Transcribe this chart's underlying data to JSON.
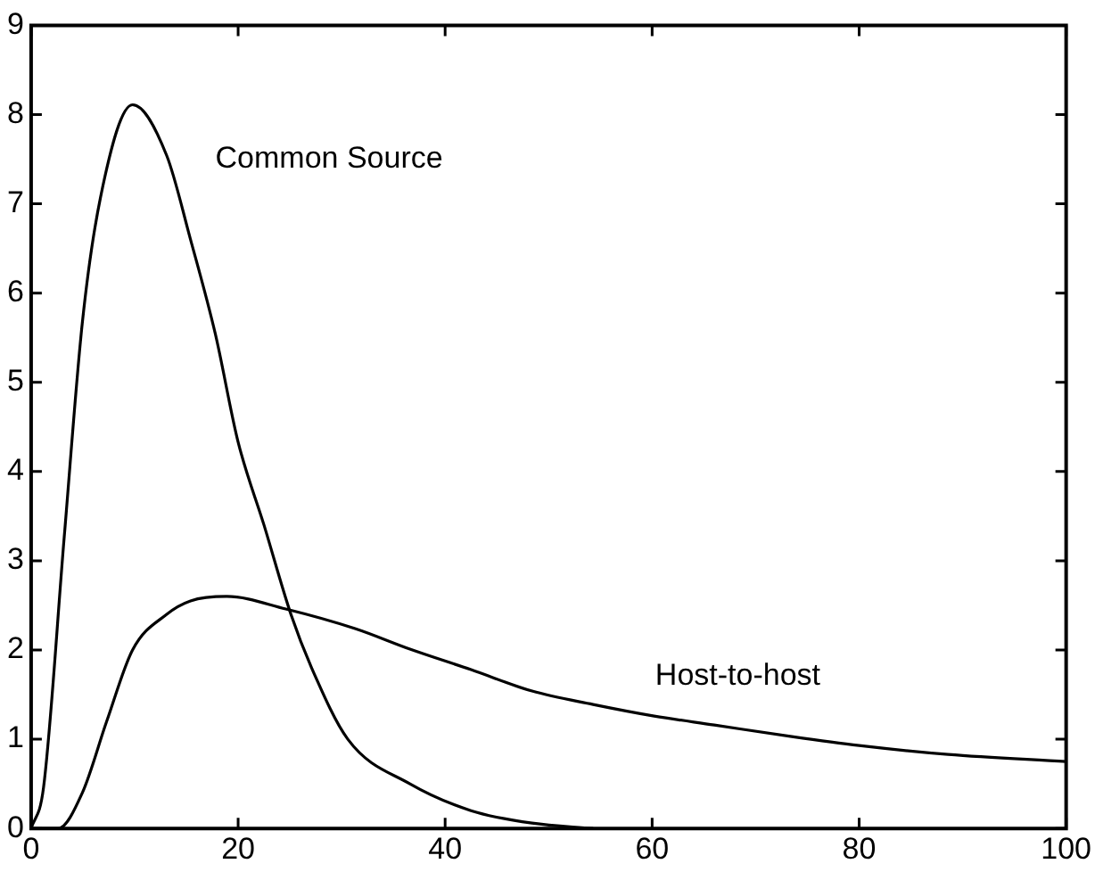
{
  "chart_data": {
    "type": "line",
    "xlim": [
      0,
      100
    ],
    "xticks": [
      0,
      20,
      40,
      60,
      80,
      100
    ],
    "ylim": [
      0,
      9
    ],
    "yticks": [
      0,
      1,
      2,
      3,
      4,
      5,
      6,
      7,
      8,
      9
    ],
    "grid": false,
    "legend": false,
    "marker": "none",
    "line_style": "solid",
    "series": [
      {
        "color": "#000000",
        "x": [
          0,
          1.2,
          3.2,
          4.95,
          6.7,
          9.8,
          13.1,
          15.4,
          17.8,
          20,
          22.5,
          25.1,
          27.1,
          30.6,
          36.6,
          42.5,
          48.4,
          54.3
        ],
        "values": [
          0,
          0.46,
          3.27,
          5.67,
          7.07,
          8.11,
          7.54,
          6.6,
          5.54,
          4.33,
          3.4,
          2.4,
          1.8,
          1.0,
          0.5,
          0.2,
          0.06,
          0
        ]
      },
      {
        "color": "#000000",
        "x": [
          0,
          2.6,
          4.95,
          7.3,
          9.8,
          13.1,
          15.4,
          18.9,
          24.6,
          31.3,
          36.6,
          42.5,
          48.4,
          54.3,
          60.2,
          66,
          73.5,
          80,
          88.6,
          100
        ],
        "values": [
          0,
          0,
          0.4,
          1.2,
          2.0,
          2.4,
          2.55,
          2.6,
          2.46,
          2.24,
          2.01,
          1.78,
          1.54,
          1.39,
          1.26,
          1.16,
          1.03,
          0.93,
          0.83,
          0.75
        ]
      }
    ],
    "annotations": [
      "Common Source",
      "Host-to-host"
    ]
  }
}
